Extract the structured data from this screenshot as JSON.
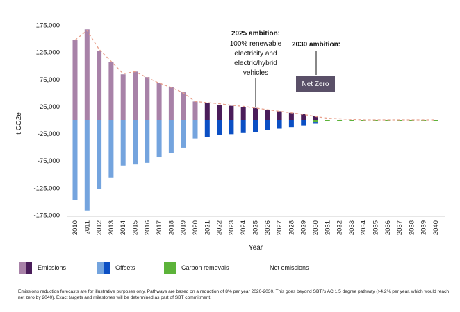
{
  "chart_data": {
    "type": "bar",
    "xlabel": "Year",
    "ylabel": "t CO2e",
    "ylim": [
      -175000,
      175000
    ],
    "yticks": [
      175000,
      125000,
      75000,
      25000,
      -25000,
      -75000,
      -125000,
      -175000
    ],
    "ytick_labels": [
      "175,000",
      "125,000",
      "75,000",
      "25,000",
      "-25,000",
      "-75,000",
      "-125,000",
      "-175,000"
    ],
    "categories": [
      "2010",
      "2011",
      "2012",
      "2013",
      "2014",
      "2015",
      "2016",
      "2017",
      "2018",
      "2019",
      "2020",
      "2021",
      "2022",
      "2023",
      "2024",
      "2025",
      "2026",
      "2027",
      "2028",
      "2029",
      "2030",
      "2031",
      "2032",
      "2033",
      "2034",
      "2035",
      "2036",
      "2037",
      "2038",
      "2039",
      "2040"
    ],
    "series": [
      {
        "name": "Emissions",
        "values": [
          147000,
          167000,
          127000,
          107000,
          84000,
          89000,
          79000,
          69000,
          61000,
          51000,
          34000,
          31000,
          28000,
          26000,
          24000,
          22000,
          19000,
          16000,
          13000,
          11000,
          7000,
          0,
          0,
          0,
          0,
          0,
          0,
          0,
          0,
          0,
          0
        ]
      },
      {
        "name": "Offsets",
        "values": [
          -147000,
          -167000,
          -127000,
          -107000,
          -84000,
          -82000,
          -79000,
          -69000,
          -61000,
          -51000,
          -34000,
          -31000,
          -28000,
          -26000,
          -24000,
          -22000,
          -19000,
          -16000,
          -13000,
          -11000,
          -3000,
          0,
          0,
          0,
          0,
          0,
          0,
          0,
          0,
          0,
          0
        ]
      },
      {
        "name": "Carbon removals",
        "values": [
          0,
          0,
          0,
          0,
          0,
          0,
          0,
          0,
          0,
          0,
          0,
          0,
          0,
          0,
          0,
          0,
          0,
          0,
          0,
          0,
          -4000,
          -2000,
          -2000,
          -2000,
          -2000,
          -2000,
          -2000,
          -2000,
          -2000,
          -2000,
          -2000
        ]
      },
      {
        "name": "Net emissions",
        "type": "line",
        "values": [
          147000,
          165000,
          130000,
          108000,
          85000,
          89000,
          78000,
          68000,
          60000,
          50000,
          34000,
          32000,
          30000,
          27000,
          25000,
          22000,
          19000,
          16000,
          13000,
          10000,
          6000,
          3000,
          2000,
          1000,
          0,
          0,
          0,
          0,
          0,
          0,
          0
        ]
      }
    ],
    "annotations": [
      {
        "title": "2025 ambition:",
        "text": [
          "100% renewable",
          "electricity and",
          "electric/hybrid",
          "vehicles"
        ],
        "year": "2025"
      },
      {
        "title": "2030 ambition:",
        "text": [
          "Net Zero"
        ],
        "year": "2030"
      }
    ],
    "legend_position": "bottom",
    "grid": false
  },
  "colors": {
    "emissions_light": "#a882a8",
    "emissions_dark": "#4a1d5a",
    "offsets_light": "#74a4de",
    "offsets_dark": "#0b4fc4",
    "carbon_removals": "#5cb33a",
    "net_line": "#e8a08c",
    "net_zero_box": "#5a5068"
  },
  "legend": {
    "emissions": "Emissions",
    "offsets": "Offsets",
    "carbon_removals": "Carbon removals",
    "net_emissions": "Net emissions"
  },
  "footnote": "Emissions reduction forecasts are for illustrative purposes only. Pathways are based on a reduction of 8% per year 2020-2030. This goes beyond SBTi's AC 1.5 degree pathway (>4.2% per year, which would reach net zero by 2040). Exact targets and milestones will be determined as part of SBT commitment."
}
